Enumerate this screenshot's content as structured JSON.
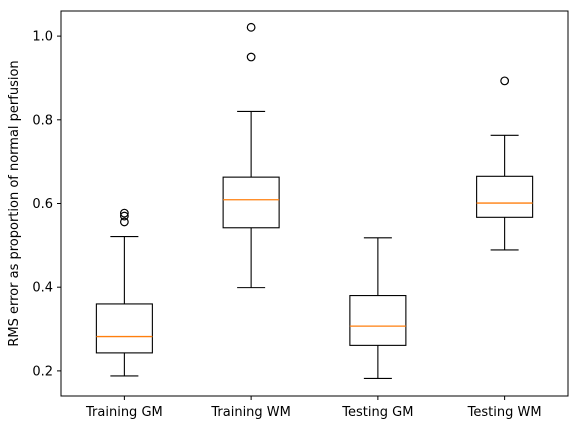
{
  "chart_data": {
    "type": "box",
    "categories": [
      "Training GM",
      "Training WM",
      "Testing GM",
      "Testing WM"
    ],
    "ylabel": "RMS error as proportion of normal perfusion",
    "xlabel": "",
    "ylim": [
      0.14,
      1.06
    ],
    "yticks": [
      0.2,
      0.4,
      0.6,
      0.8,
      1.0
    ],
    "ytick_labels": [
      "0.2",
      "0.4",
      "0.6",
      "0.8",
      "1.0"
    ],
    "boxes": [
      {
        "name": "Training GM",
        "whisker_low": 0.188,
        "q1": 0.243,
        "median": 0.282,
        "q3": 0.36,
        "whisker_high": 0.521,
        "outliers": [
          0.556,
          0.57,
          0.577
        ]
      },
      {
        "name": "Training WM",
        "whisker_low": 0.399,
        "q1": 0.542,
        "median": 0.609,
        "q3": 0.663,
        "whisker_high": 0.82,
        "outliers": [
          0.95,
          1.021
        ]
      },
      {
        "name": "Testing GM",
        "whisker_low": 0.182,
        "q1": 0.261,
        "median": 0.307,
        "q3": 0.38,
        "whisker_high": 0.518,
        "outliers": []
      },
      {
        "name": "Testing WM",
        "whisker_low": 0.489,
        "q1": 0.567,
        "median": 0.601,
        "q3": 0.665,
        "whisker_high": 0.763,
        "outliers": [
          0.893
        ]
      }
    ],
    "colors": {
      "box": "#000000",
      "median": "#ff7f0e",
      "background": "#ffffff"
    },
    "grid": false,
    "legend": "none"
  }
}
